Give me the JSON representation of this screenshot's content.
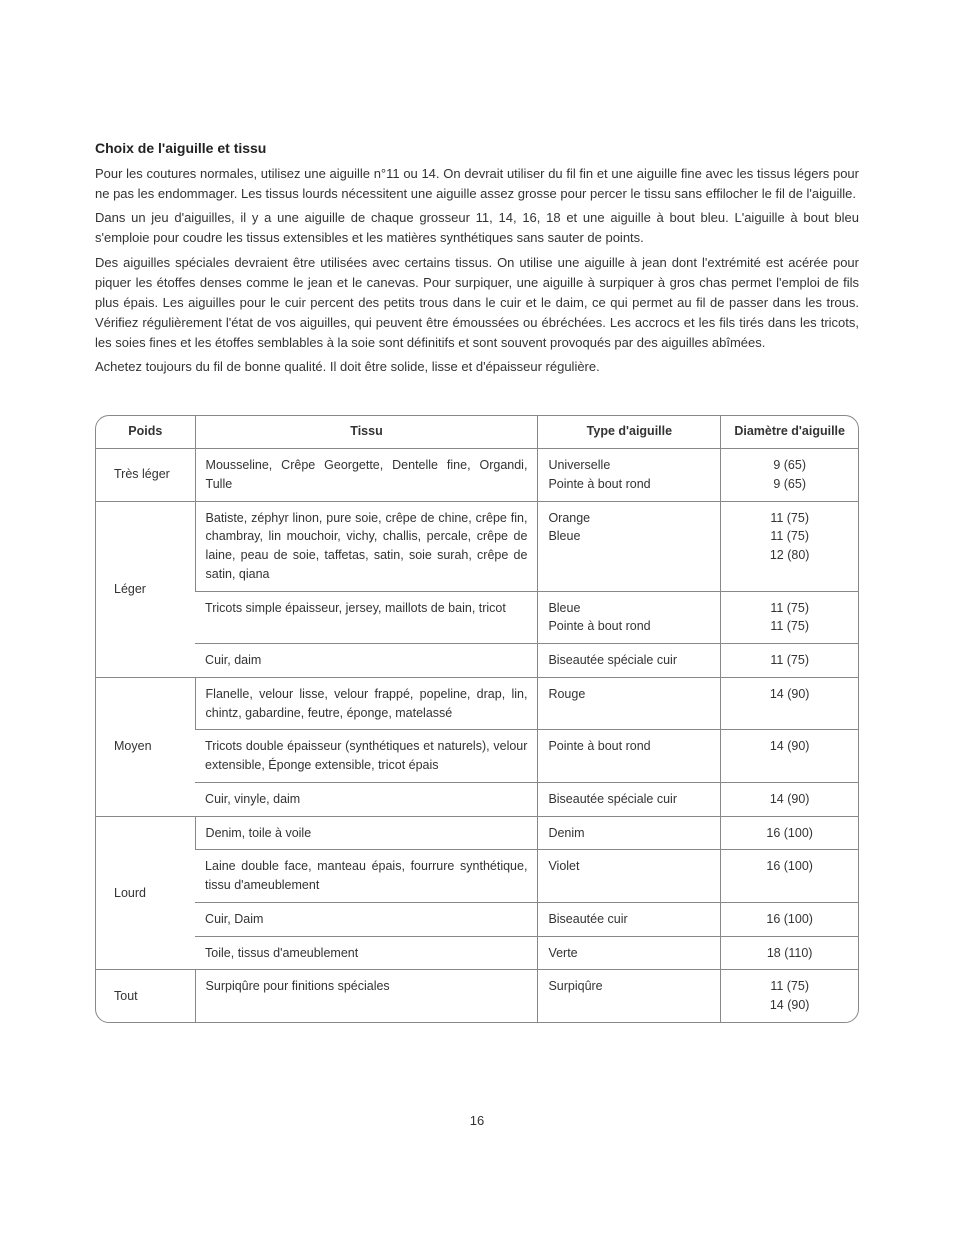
{
  "heading": "Choix de l'aiguille et tissu",
  "paragraphs": [
    "Pour les coutures normales, utilisez une aiguille n°11 ou 14. On devrait utiliser du fil fin et une aiguille fine avec les tissus légers pour ne pas les endommager. Les tissus lourds nécessitent une aiguille assez grosse pour percer le tissu sans effilocher le fil de l'aiguille.",
    "Dans un jeu d'aiguilles, il y a une aiguille de chaque grosseur 11, 14, 16, 18 et une aiguille à bout bleu. L'aiguille à bout bleu s'emploie pour coudre les tissus extensibles et les matières synthétiques sans sauter de points.",
    "Des aiguilles spéciales devraient être utilisées avec certains tissus. On utilise une aiguille à jean dont l'extrémité est acérée pour piquer les étoffes denses comme le jean et le canevas. Pour surpiquer, une aiguille à surpiquer à gros chas permet l'emploi de fils plus épais. Les aiguilles pour le cuir percent des petits trous dans le cuir et le daim, ce qui permet au fil de passer dans les trous. Vérifiez régulièrement l'état de vos aiguilles, qui peuvent être émoussées ou ébréchées. Les accrocs et les fils tirés dans les tricots, les soies fines et les étoffes semblables à la soie sont définitifs et sont souvent provoqués par des aiguilles abîmées.",
    "Achetez toujours du fil de bonne qualité. Il doit être solide, lisse et d'épaisseur régulière."
  ],
  "table": {
    "headers": {
      "poids": "Poids",
      "tissu": "Tissu",
      "type": "Type d'aiguille",
      "dia": "Diamètre d'aiguille"
    },
    "groups": [
      {
        "poids": "Très léger",
        "rows": [
          {
            "tissu": "Mousseline, Crêpe Georgette, Dentelle fine, Organdi, Tulle",
            "type": "Universelle\nPointe à bout rond",
            "dia": "9 (65)\n9 (65)"
          }
        ]
      },
      {
        "poids": "Léger",
        "rows": [
          {
            "tissu": "Batiste, zéphyr linon, pure soie, crêpe de chine, crêpe fin, chambray, lin mouchoir, vichy, challis, percale, crêpe de laine, peau de soie, taffetas, satin, soie surah, crêpe de satin, qiana",
            "type": "Orange\nBleue",
            "dia": "11 (75)\n11 (75)\n12 (80)"
          },
          {
            "tissu": "Tricots simple épaisseur, jersey, maillots de bain, tricot",
            "type": "Bleue\nPointe à bout rond",
            "dia": "11 (75)\n11 (75)"
          },
          {
            "tissu": "Cuir, daim",
            "type": "Biseautée spéciale cuir",
            "dia": "11 (75)"
          }
        ]
      },
      {
        "poids": "Moyen",
        "rows": [
          {
            "tissu": "Flanelle, velour lisse, velour frappé, popeline, drap, lin, chintz, gabardine, feutre, éponge, matelassé",
            "type": "Rouge",
            "dia": "14 (90)"
          },
          {
            "tissu": "Tricots double épaisseur (synthétiques et naturels), velour extensible, Éponge extensible, tricot épais",
            "type": "Pointe à bout rond",
            "dia": "14 (90)"
          },
          {
            "tissu": "Cuir, vinyle, daim",
            "type": "Biseautée spéciale cuir",
            "dia": "14 (90)"
          }
        ]
      },
      {
        "poids": "Lourd",
        "rows": [
          {
            "tissu": "Denim, toile à voile",
            "type": "Denim",
            "dia": "16 (100)"
          },
          {
            "tissu": "Laine double face, manteau épais, fourrure synthétique, tissu d'ameublement",
            "type": "Violet",
            "dia": "16 (100)"
          },
          {
            "tissu": "Cuir, Daim",
            "type": "Biseautée cuir",
            "dia": "16 (100)"
          },
          {
            "tissu": "Toile, tissus d'ameublement",
            "type": "Verte",
            "dia": "18 (110)"
          }
        ]
      },
      {
        "poids": "Tout",
        "rows": [
          {
            "tissu": "Surpiqûre pour finitions spéciales",
            "type": "Surpiqûre",
            "dia": "11 (75)\n14 (90)"
          }
        ]
      }
    ]
  },
  "page_number": "16",
  "style": {
    "background_color": "#ffffff",
    "text_color": "#333333",
    "border_color": "#888888",
    "heading_fontsize": 14,
    "body_fontsize": 13,
    "table_fontsize": 12.5,
    "font_family": "Arial, Helvetica, sans-serif"
  }
}
